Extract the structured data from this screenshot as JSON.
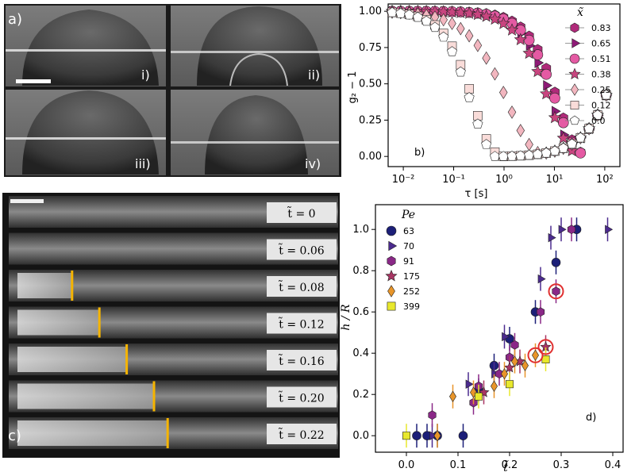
{
  "panel_a": {
    "label": "a)",
    "sublabels": [
      "i)",
      "ii)",
      "iii)",
      "iv)"
    ]
  },
  "panel_c": {
    "label": "c)",
    "frames": [
      {
        "label": "t̃ = 0",
        "front": null
      },
      {
        "label": "t̃ = 0.06",
        "front": null
      },
      {
        "label": "t̃ = 0.08",
        "front": 0.08
      },
      {
        "label": "t̃ = 0.12",
        "front": 0.12
      },
      {
        "label": "t̃ = 0.16",
        "front": 0.16
      },
      {
        "label": "t̃ = 0.20",
        "front": 0.2
      },
      {
        "label": "t̃ = 0.22",
        "front": 0.22
      }
    ],
    "front_color": "#f5b400"
  },
  "chart_data": [
    {
      "panel": "b)",
      "type": "scatter",
      "xscale": "log",
      "xlabel": "τ  [s]",
      "ylabel": "g₂ − 1",
      "xlim": [
        0.005,
        200
      ],
      "ylim": [
        -0.07,
        1.05
      ],
      "xticks": [
        {
          "v": 0.01,
          "label": "10⁻²"
        },
        {
          "v": 0.1,
          "label": "10⁻¹"
        },
        {
          "v": 1,
          "label": "10⁰"
        },
        {
          "v": 10,
          "label": "10¹"
        },
        {
          "v": 100,
          "label": "10²"
        }
      ],
      "yticks": [
        {
          "v": 0.0,
          "label": "0.00"
        },
        {
          "v": 0.25,
          "label": "0.25"
        },
        {
          "v": 0.5,
          "label": "0.50"
        },
        {
          "v": 0.75,
          "label": "0.75"
        },
        {
          "v": 1.0,
          "label": "1.00"
        }
      ],
      "legend_title": "x̃",
      "legend_position": "right",
      "series": [
        {
          "name": "0.83",
          "marker": "hexagon",
          "color": "#b02a7a",
          "tau_c": 12,
          "beta": 1.25
        },
        {
          "name": "0.65",
          "marker": "triangle-right",
          "color": "#8e1a76",
          "tau_c": 9,
          "beta": 1.25
        },
        {
          "name": "0.51",
          "marker": "circle",
          "color": "#e45aa3",
          "tau_c": 11,
          "beta": 1.2
        },
        {
          "name": "0.38",
          "marker": "star",
          "color": "#c8457f",
          "tau_c": 8,
          "beta": 1.15
        },
        {
          "name": "0.25",
          "marker": "diamond",
          "color": "#f2b6bf",
          "tau_c": 1.2,
          "beta": 0.95
        },
        {
          "name": "0.12",
          "marker": "square",
          "color": "#f9dcd9",
          "tau_c": 0.25,
          "beta": 1.3
        },
        {
          "name": "0.0",
          "marker": "pentagon",
          "color": "#ffffff",
          "tau_c": 0.22,
          "beta": 1.3
        }
      ]
    },
    {
      "panel": "d)",
      "type": "scatter",
      "xlabel": "t̃",
      "ylabel": "h / R",
      "xlim": [
        -0.06,
        0.42
      ],
      "ylim": [
        -0.08,
        1.12
      ],
      "xticks": [
        {
          "v": 0.0,
          "label": "0.0"
        },
        {
          "v": 0.1,
          "label": "0.1"
        },
        {
          "v": 0.2,
          "label": "0.2"
        },
        {
          "v": 0.3,
          "label": "0.3"
        },
        {
          "v": 0.4,
          "label": "0.4"
        }
      ],
      "yticks": [
        {
          "v": 0.0,
          "label": "0.0"
        },
        {
          "v": 0.2,
          "label": "0.2"
        },
        {
          "v": 0.4,
          "label": "0.4"
        },
        {
          "v": 0.6,
          "label": "0.6"
        },
        {
          "v": 0.8,
          "label": "0.8"
        },
        {
          "v": 1.0,
          "label": "1.0"
        }
      ],
      "legend_title": "Pe",
      "legend_position": "top-left",
      "series": [
        {
          "name": "63",
          "marker": "circle",
          "color": "#1c1f78",
          "points": [
            [
              0.02,
              0.0
            ],
            [
              0.04,
              0.0
            ],
            [
              0.06,
              0.0
            ],
            [
              0.11,
              0.0
            ],
            [
              0.14,
              0.22
            ],
            [
              0.17,
              0.34
            ],
            [
              0.2,
              0.47
            ],
            [
              0.25,
              0.6
            ],
            [
              0.29,
              0.84
            ],
            [
              0.33,
              1.0
            ]
          ]
        },
        {
          "name": "70",
          "marker": "triangle-right",
          "color": "#4b2a8e",
          "points": [
            [
              0.05,
              0.0
            ],
            [
              0.12,
              0.25
            ],
            [
              0.17,
              0.3
            ],
            [
              0.19,
              0.48
            ],
            [
              0.26,
              0.76
            ],
            [
              0.28,
              0.96
            ],
            [
              0.3,
              1.0
            ],
            [
              0.39,
              1.0
            ]
          ]
        },
        {
          "name": "91",
          "marker": "hexagon",
          "color": "#8a2887",
          "points": [
            [
              0.05,
              0.1
            ],
            [
              0.13,
              0.16
            ],
            [
              0.14,
              0.24
            ],
            [
              0.18,
              0.3
            ],
            [
              0.2,
              0.38
            ],
            [
              0.21,
              0.44
            ],
            [
              0.26,
              0.6
            ],
            [
              0.29,
              0.7
            ],
            [
              0.32,
              1.0
            ]
          ]
        },
        {
          "name": "175",
          "marker": "star",
          "color": "#a83563",
          "points": [
            [
              0.15,
              0.21
            ],
            [
              0.2,
              0.33
            ],
            [
              0.22,
              0.36
            ],
            [
              0.27,
              0.43
            ]
          ]
        },
        {
          "name": "252",
          "marker": "diamond",
          "color": "#e8952a",
          "points": [
            [
              0.06,
              0.0
            ],
            [
              0.09,
              0.19
            ],
            [
              0.13,
              0.21
            ],
            [
              0.17,
              0.24
            ],
            [
              0.19,
              0.3
            ],
            [
              0.21,
              0.36
            ],
            [
              0.23,
              0.34
            ],
            [
              0.25,
              0.39
            ]
          ]
        },
        {
          "name": "399",
          "marker": "square",
          "color": "#e8e82c",
          "points": [
            [
              0.0,
              0.0
            ],
            [
              0.14,
              0.19
            ],
            [
              0.2,
              0.25
            ],
            [
              0.27,
              0.37
            ]
          ]
        }
      ],
      "highlighted": [
        [
          0.25,
          0.39
        ],
        [
          0.27,
          0.43
        ],
        [
          0.29,
          0.7
        ]
      ],
      "highlight_color": "#e03030"
    }
  ]
}
